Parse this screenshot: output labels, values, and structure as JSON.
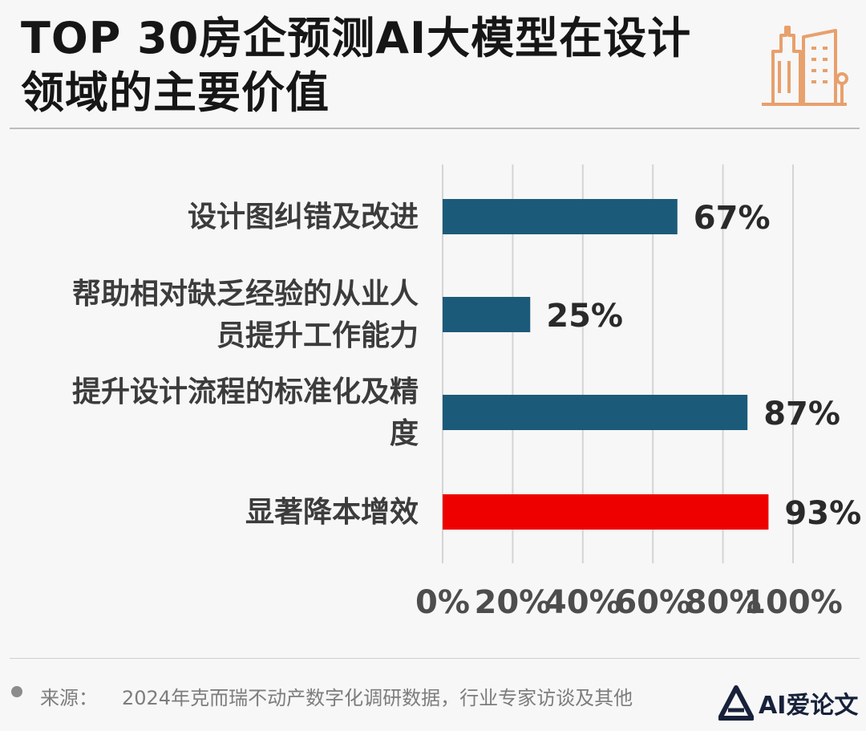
{
  "header": {
    "title": "TOP 30房企预测AI大模型在设计领域的主要价值",
    "icon": "city-buildings-icon"
  },
  "chart_data": {
    "type": "bar",
    "orientation": "horizontal",
    "title": "TOP 30房企预测AI大模型在设计领域的主要价值",
    "categories": [
      "设计图纠错及改进",
      "帮助相对缺乏经验的从业人员提升工作能力",
      "提升设计流程的标准化及精度",
      "显著降本增效"
    ],
    "category_lines": [
      [
        "设计图纠错及改进"
      ],
      [
        "帮助相对缺乏经验的从业人",
        "员提升工作能力"
      ],
      [
        "提升设计流程的标准化及精",
        "度"
      ],
      [
        "显著降本增效"
      ]
    ],
    "values": [
      67,
      25,
      87,
      93
    ],
    "value_labels": [
      "67%",
      "25%",
      "87%",
      "93%"
    ],
    "bar_colors": [
      "#1c5a7a",
      "#1c5a7a",
      "#1c5a7a",
      "#ee0000"
    ],
    "xlim": [
      0,
      100
    ],
    "x_ticks": [
      0,
      20,
      40,
      60,
      80,
      100
    ],
    "x_tick_labels": [
      "0%",
      "20%",
      "40%",
      "60%",
      "80%",
      "100%"
    ],
    "grid": true,
    "legend": "none"
  },
  "footer": {
    "source_label": "来源：",
    "source_text": "2024年克而瑞不动产数字化调研数据，行业专家访谈及其他",
    "brand": "AI爱论文"
  },
  "colors": {
    "bar_primary": "#1c5a7a",
    "bar_highlight": "#ee0000",
    "icon_orange": "#e8a06c"
  }
}
